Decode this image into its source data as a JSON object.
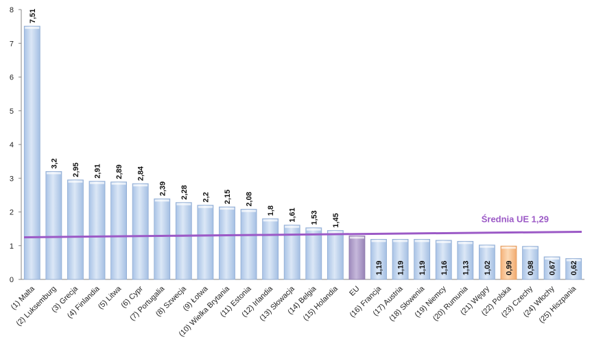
{
  "chart_data": {
    "type": "bar",
    "categories": [
      "(1) Malta",
      "(2) Luksemburg",
      "(3) Grecja",
      "(4) Finlandia",
      "(5) Litwa",
      "(6) Cypr",
      "(7) Portugalia",
      "(8) Szwecja",
      "(9) Łotwa",
      "(10) Wielka Brytania",
      "(11) Estonia",
      "(12) Irlandia",
      "(13) Słowacja",
      "(14) Belgia",
      "(15) Holandia",
      "EU",
      "(16) Francja",
      "(17) Austria",
      "(18) Słowenia",
      "(19) Niemcy",
      "(20) Rumunia",
      "(21) Węgry",
      "(22) Polska",
      "(23) Czechy",
      "(24) Włochy",
      "(25) Hiszpania"
    ],
    "values": [
      7.51,
      3.2,
      2.95,
      2.91,
      2.89,
      2.84,
      2.39,
      2.28,
      2.2,
      2.15,
      2.08,
      1.8,
      1.61,
      1.53,
      1.45,
      1.29,
      1.19,
      1.19,
      1.19,
      1.16,
      1.13,
      1.02,
      0.99,
      0.98,
      0.67,
      0.62
    ],
    "value_labels": [
      "7,51",
      "3,2",
      "2,95",
      "2,91",
      "2,89",
      "2,84",
      "2,39",
      "2,28",
      "2,2",
      "2,15",
      "2,08",
      "1,8",
      "1,61",
      "1,53",
      "1,45",
      "",
      "1,19",
      "1,19",
      "1,19",
      "1,16",
      "1,13",
      "1,02",
      "0,99",
      "0,98",
      "0,67",
      "0,62"
    ],
    "highlight": {
      "EU": "#b3a2c7",
      "(22) Polska": "#f9c89b"
    },
    "bar_color": "#c6d9f1",
    "y_ticks": [
      "0",
      "1",
      "2",
      "3",
      "4",
      "5",
      "6",
      "7",
      "8"
    ],
    "ylim": [
      0,
      8
    ],
    "grid": false,
    "title": "",
    "xlabel": "",
    "ylabel": "",
    "reference_line": {
      "value": 1.29,
      "label": "Średnia UE 1,29",
      "color": "#9b59c6"
    }
  }
}
